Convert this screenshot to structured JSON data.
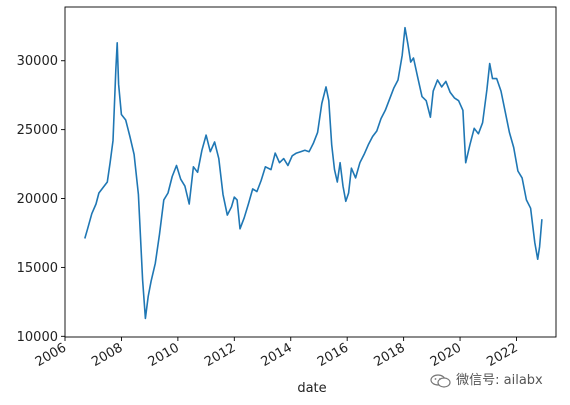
{
  "chart_data": {
    "type": "line",
    "title": "",
    "xlabel": "date",
    "ylabel": "",
    "xlim": [
      2006.0,
      2023.4
    ],
    "ylim": [
      9950,
      33900
    ],
    "x_ticks": [
      2006,
      2008,
      2010,
      2012,
      2014,
      2016,
      2018,
      2020,
      2022
    ],
    "x_tick_labels": [
      "2006",
      "2008",
      "2010",
      "2012",
      "2014",
      "2016",
      "2018",
      "2020",
      "2022"
    ],
    "y_ticks": [
      10000,
      15000,
      20000,
      25000,
      30000
    ],
    "y_tick_labels": [
      "10000",
      "15000",
      "20000",
      "25000",
      "30000"
    ],
    "grid": false,
    "legend": "none",
    "line_color": "#1f77b4",
    "series": [
      {
        "x": [
          2006.7,
          2006.8,
          2006.95,
          2007.1,
          2007.2,
          2007.35,
          2007.5,
          2007.6,
          2007.7,
          2007.8,
          2007.85,
          2007.9,
          2008.0,
          2008.15,
          2008.3,
          2008.45,
          2008.6,
          2008.75,
          2008.85,
          2008.95,
          2009.05,
          2009.2,
          2009.35,
          2009.5,
          2009.65,
          2009.8,
          2009.95,
          2010.1,
          2010.25,
          2010.4,
          2010.55,
          2010.7,
          2010.85,
          2011.0,
          2011.15,
          2011.3,
          2011.45,
          2011.6,
          2011.75,
          2011.9,
          2012.0,
          2012.1,
          2012.2,
          2012.35,
          2012.5,
          2012.65,
          2012.8,
          2012.95,
          2013.1,
          2013.3,
          2013.45,
          2013.6,
          2013.75,
          2013.9,
          2014.05,
          2014.2,
          2014.35,
          2014.5,
          2014.65,
          2014.8,
          2014.95,
          2015.1,
          2015.25,
          2015.35,
          2015.45,
          2015.55,
          2015.65,
          2015.75,
          2015.85,
          2015.95,
          2016.05,
          2016.15,
          2016.3,
          2016.45,
          2016.6,
          2016.75,
          2016.9,
          2017.05,
          2017.2,
          2017.35,
          2017.5,
          2017.65,
          2017.8,
          2017.95,
          2018.05,
          2018.15,
          2018.25,
          2018.35,
          2018.5,
          2018.65,
          2018.8,
          2018.95,
          2019.05,
          2019.2,
          2019.35,
          2019.5,
          2019.65,
          2019.8,
          2019.95,
          2020.1,
          2020.2,
          2020.35,
          2020.5,
          2020.65,
          2020.8,
          2020.95,
          2021.05,
          2021.15,
          2021.3,
          2021.45,
          2021.6,
          2021.75,
          2021.9,
          2022.05,
          2022.2,
          2022.35,
          2022.5,
          2022.65,
          2022.75,
          2022.82,
          2022.9
        ],
        "y": [
          17100,
          17800,
          18900,
          19600,
          20400,
          20800,
          21200,
          22600,
          24200,
          29300,
          31300,
          28300,
          26100,
          25700,
          24500,
          23200,
          20300,
          14100,
          11300,
          12900,
          14000,
          15300,
          17400,
          19900,
          20400,
          21600,
          22400,
          21400,
          20900,
          19600,
          22300,
          21900,
          23500,
          24600,
          23400,
          24100,
          22900,
          20300,
          18800,
          19400,
          20100,
          19900,
          17800,
          18600,
          19600,
          20700,
          20500,
          21300,
          22300,
          22100,
          23300,
          22600,
          22900,
          22400,
          23100,
          23300,
          23400,
          23500,
          23400,
          24000,
          24800,
          26900,
          28100,
          27100,
          23900,
          22100,
          21200,
          22600,
          20900,
          19800,
          20400,
          22200,
          21500,
          22600,
          23200,
          23900,
          24500,
          24900,
          25800,
          26400,
          27200,
          28000,
          28600,
          30400,
          32400,
          31200,
          29900,
          30200,
          28800,
          27400,
          27100,
          25900,
          27800,
          28600,
          28100,
          28500,
          27700,
          27300,
          27100,
          26400,
          22600,
          23900,
          25100,
          24700,
          25500,
          27900,
          29800,
          28700,
          28700,
          27800,
          26300,
          24800,
          23700,
          22000,
          21500,
          19900,
          19300,
          16800,
          15600,
          16500,
          18500
        ]
      }
    ]
  },
  "watermark": {
    "text": "微信号: ailabx",
    "icon": "wechat-icon"
  }
}
